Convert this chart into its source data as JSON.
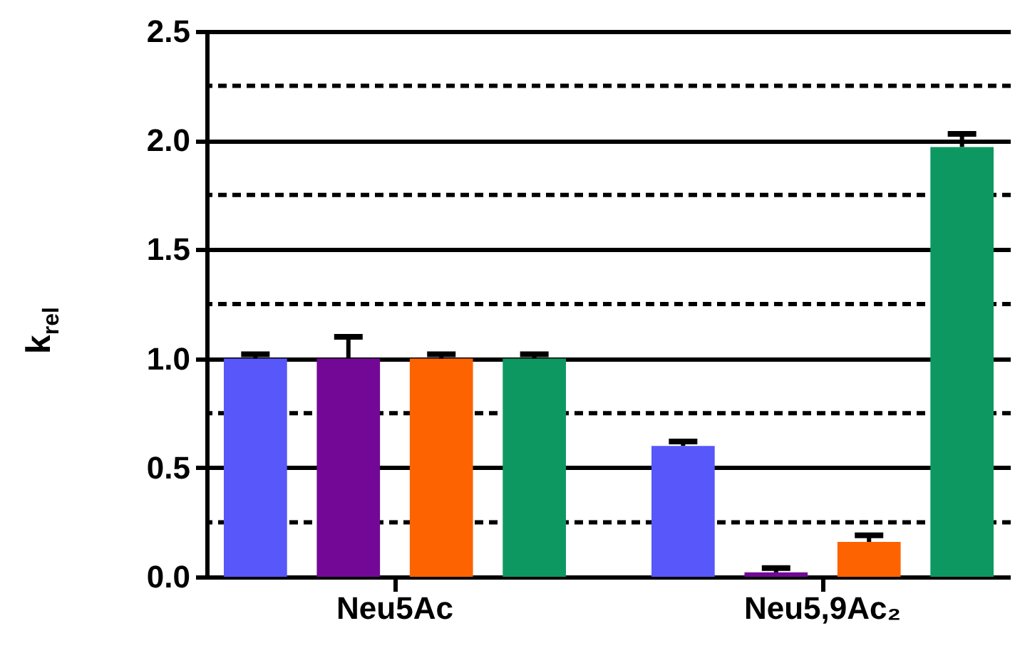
{
  "chart_data": {
    "type": "bar",
    "ylabel": "k$_{rel}$",
    "categories": [
      "Neu5Ac",
      "Neu5,9Ac₂"
    ],
    "series": [
      {
        "color": "#5757fa",
        "values": [
          1.0,
          0.6
        ],
        "errors": [
          [
            1.0,
            1.02
          ],
          [
            0.6,
            0.62
          ]
        ]
      },
      {
        "color": "#730896",
        "values": [
          1.0,
          0.02
        ],
        "errors": [
          [
            1.0,
            1.1
          ],
          [
            0.02,
            0.04
          ]
        ]
      },
      {
        "color": "#fd6300",
        "values": [
          1.0,
          0.16
        ],
        "errors": [
          [
            1.0,
            1.02
          ],
          [
            0.16,
            0.19
          ]
        ]
      },
      {
        "color": "#0e9861",
        "values": [
          1.0,
          1.97
        ],
        "errors": [
          [
            1.0,
            1.02
          ],
          [
            1.97,
            2.03
          ]
        ]
      }
    ],
    "ylim": [
      0,
      2.5
    ],
    "yticks": [
      {
        "value": 0,
        "label": "0.0"
      },
      0.5,
      {
        "value": 1,
        "label": "1.0"
      },
      1.5,
      {
        "value": 2,
        "label": "2.0"
      },
      2.5
    ],
    "grid": "y",
    "ref_lines": [
      {
        "axis": "y",
        "value": 0.25,
        "color": "#000000",
        "line_style": "dashed"
      },
      {
        "axis": "y",
        "value": 0.75,
        "color": "#000000",
        "line_style": "dashed"
      },
      {
        "axis": "y",
        "value": 1.25,
        "color": "#000000",
        "line_style": "dashed"
      },
      {
        "axis": "y",
        "value": 1.75,
        "color": "#000000",
        "line_style": "dashed"
      },
      {
        "axis": "y",
        "value": 2.25,
        "color": "#000000",
        "line_style": "dashed"
      }
    ]
  }
}
